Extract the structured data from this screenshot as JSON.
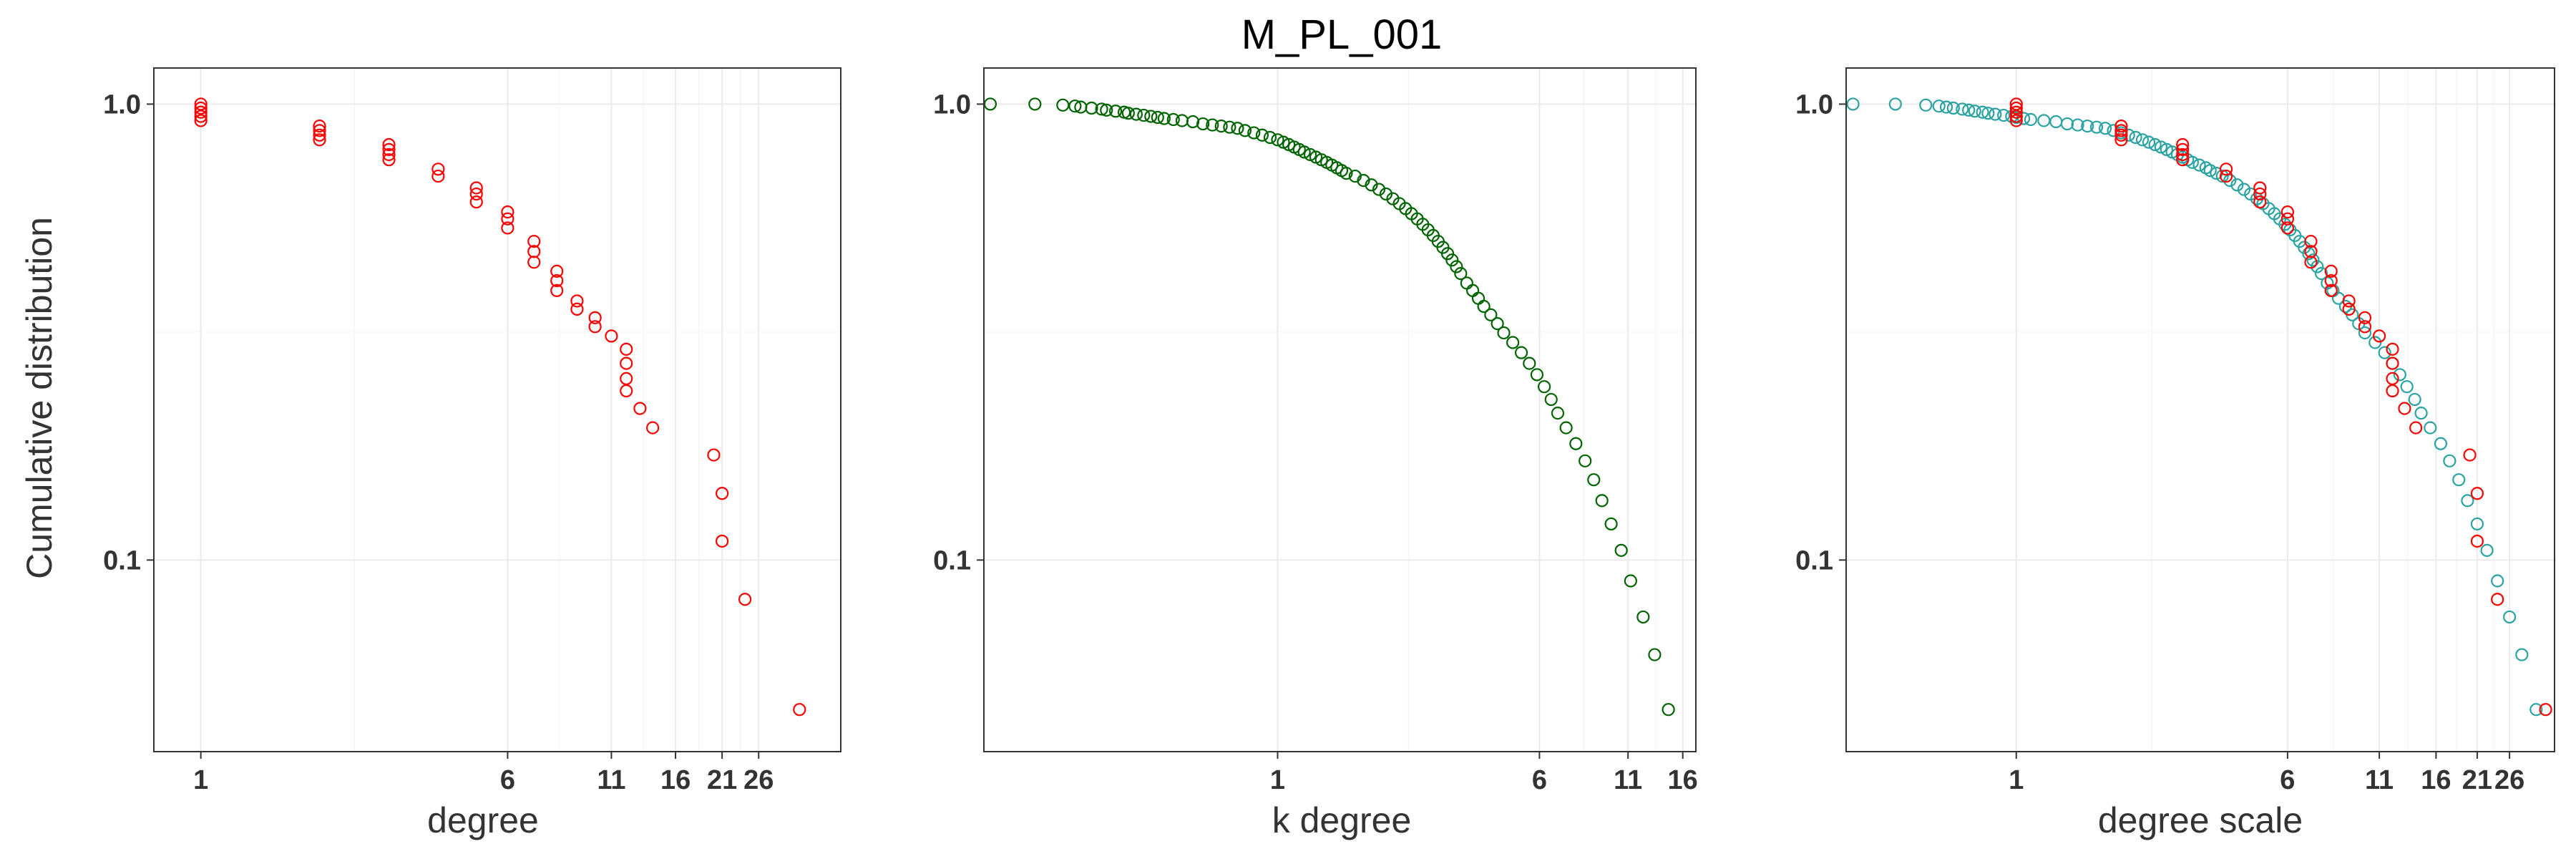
{
  "title": "M_PL_001",
  "colors": {
    "red": "#ff0000",
    "green": "#006400",
    "teal": "#2ca3a3"
  },
  "chart_data": [
    {
      "type": "scatter",
      "title": "",
      "xlabel": "degree",
      "ylabel": "Cumulative distribution",
      "x_scale": "log10",
      "y_scale": "log10",
      "xlim": [
        0.76,
        42
      ],
      "ylim": [
        0.038,
        1.2
      ],
      "x_ticks": [
        1,
        6,
        11,
        16,
        21,
        26
      ],
      "y_ticks": [
        0.1,
        1.0
      ],
      "y_tick_labels": [
        "0.1",
        "1.0"
      ],
      "grid": true,
      "marker": "open-circle",
      "series": [
        {
          "color": "#ff0000",
          "points": [
            [
              1,
              1.0
            ],
            [
              1,
              0.98
            ],
            [
              1,
              0.96
            ],
            [
              1,
              0.94
            ],
            [
              1,
              0.92
            ],
            [
              2,
              0.895
            ],
            [
              2,
              0.875
            ],
            [
              2,
              0.855
            ],
            [
              2,
              0.835
            ],
            [
              3,
              0.815
            ],
            [
              3,
              0.795
            ],
            [
              3,
              0.775
            ],
            [
              3,
              0.755
            ],
            [
              4,
              0.72
            ],
            [
              4,
              0.695
            ],
            [
              5,
              0.655
            ],
            [
              5,
              0.635
            ],
            [
              5,
              0.61
            ],
            [
              6,
              0.58
            ],
            [
              6,
              0.56
            ],
            [
              6,
              0.535
            ],
            [
              7,
              0.5
            ],
            [
              7,
              0.475
            ],
            [
              7,
              0.45
            ],
            [
              8,
              0.43
            ],
            [
              8,
              0.41
            ],
            [
              8,
              0.39
            ],
            [
              9,
              0.37
            ],
            [
              9,
              0.355
            ],
            [
              10,
              0.34
            ],
            [
              10,
              0.325
            ],
            [
              11,
              0.31
            ],
            [
              12,
              0.29
            ],
            [
              12,
              0.27
            ],
            [
              12,
              0.25
            ],
            [
              12,
              0.235
            ],
            [
              13,
              0.215
            ],
            [
              14,
              0.195
            ],
            [
              20,
              0.17
            ],
            [
              21,
              0.14
            ],
            [
              21,
              0.11
            ],
            [
              24,
              0.082
            ],
            [
              33,
              0.047
            ]
          ]
        }
      ]
    },
    {
      "type": "scatter",
      "title": "",
      "xlabel": "k degree",
      "ylabel": "",
      "x_scale": "log10",
      "y_scale": "log10",
      "xlim": [
        0.134,
        17.5
      ],
      "ylim": [
        0.038,
        1.2
      ],
      "x_ticks": [
        1,
        6,
        11,
        16
      ],
      "y_ticks": [
        0.1,
        1.0
      ],
      "y_tick_labels": [
        "0.1",
        "1.0"
      ],
      "grid": true,
      "marker": "open-circle",
      "series": [
        {
          "color": "#006400",
          "points": [
            [
              0.14,
              1.0
            ],
            [
              0.19,
              1.0
            ],
            [
              0.23,
              0.995
            ],
            [
              0.25,
              0.99
            ],
            [
              0.26,
              0.985
            ],
            [
              0.28,
              0.98
            ],
            [
              0.3,
              0.975
            ],
            [
              0.31,
              0.97
            ],
            [
              0.33,
              0.965
            ],
            [
              0.35,
              0.96
            ],
            [
              0.36,
              0.955
            ],
            [
              0.38,
              0.95
            ],
            [
              0.4,
              0.945
            ],
            [
              0.42,
              0.94
            ],
            [
              0.44,
              0.935
            ],
            [
              0.46,
              0.93
            ],
            [
              0.49,
              0.925
            ],
            [
              0.52,
              0.92
            ],
            [
              0.56,
              0.915
            ],
            [
              0.6,
              0.905
            ],
            [
              0.64,
              0.9
            ],
            [
              0.68,
              0.895
            ],
            [
              0.72,
              0.89
            ],
            [
              0.76,
              0.885
            ],
            [
              0.8,
              0.875
            ],
            [
              0.85,
              0.865
            ],
            [
              0.9,
              0.855
            ],
            [
              0.95,
              0.845
            ],
            [
              1.0,
              0.835
            ],
            [
              1.04,
              0.825
            ],
            [
              1.08,
              0.815
            ],
            [
              1.12,
              0.805
            ],
            [
              1.16,
              0.795
            ],
            [
              1.2,
              0.785
            ],
            [
              1.25,
              0.775
            ],
            [
              1.3,
              0.765
            ],
            [
              1.35,
              0.755
            ],
            [
              1.4,
              0.745
            ],
            [
              1.45,
              0.735
            ],
            [
              1.5,
              0.725
            ],
            [
              1.55,
              0.715
            ],
            [
              1.6,
              0.705
            ],
            [
              1.7,
              0.695
            ],
            [
              1.8,
              0.68
            ],
            [
              1.9,
              0.665
            ],
            [
              2.0,
              0.65
            ],
            [
              2.1,
              0.635
            ],
            [
              2.2,
              0.62
            ],
            [
              2.3,
              0.605
            ],
            [
              2.4,
              0.59
            ],
            [
              2.5,
              0.575
            ],
            [
              2.6,
              0.56
            ],
            [
              2.7,
              0.545
            ],
            [
              2.8,
              0.53
            ],
            [
              2.9,
              0.515
            ],
            [
              3.0,
              0.5
            ],
            [
              3.1,
              0.485
            ],
            [
              3.2,
              0.47
            ],
            [
              3.3,
              0.455
            ],
            [
              3.4,
              0.44
            ],
            [
              3.5,
              0.425
            ],
            [
              3.65,
              0.405
            ],
            [
              3.8,
              0.39
            ],
            [
              3.95,
              0.375
            ],
            [
              4.1,
              0.36
            ],
            [
              4.3,
              0.345
            ],
            [
              4.5,
              0.33
            ],
            [
              4.7,
              0.315
            ],
            [
              5.0,
              0.3
            ],
            [
              5.3,
              0.285
            ],
            [
              5.6,
              0.27
            ],
            [
              5.9,
              0.255
            ],
            [
              6.2,
              0.24
            ],
            [
              6.5,
              0.225
            ],
            [
              6.8,
              0.21
            ],
            [
              7.2,
              0.195
            ],
            [
              7.7,
              0.18
            ],
            [
              8.2,
              0.165
            ],
            [
              8.7,
              0.15
            ],
            [
              9.2,
              0.135
            ],
            [
              9.8,
              0.12
            ],
            [
              10.5,
              0.105
            ],
            [
              11.2,
              0.09
            ],
            [
              12.2,
              0.075
            ],
            [
              13.2,
              0.062
            ],
            [
              14.5,
              0.047
            ]
          ]
        }
      ]
    },
    {
      "type": "scatter",
      "title": "",
      "xlabel": "degree scale",
      "ylabel": "",
      "x_scale": "log10",
      "y_scale": "log10",
      "xlim": [
        0.325,
        35
      ],
      "ylim": [
        0.038,
        1.2
      ],
      "x_ticks": [
        1,
        6,
        11,
        16,
        21,
        26
      ],
      "y_ticks": [
        0.1,
        1.0
      ],
      "y_tick_labels": [
        "0.1",
        "1.0"
      ],
      "grid": true,
      "marker": "open-circle",
      "series": [
        {
          "color": "#2ca3a3",
          "points": [
            [
              0.34,
              1.0
            ],
            [
              0.45,
              1.0
            ],
            [
              0.55,
              0.995
            ],
            [
              0.6,
              0.99
            ],
            [
              0.63,
              0.985
            ],
            [
              0.66,
              0.98
            ],
            [
              0.7,
              0.975
            ],
            [
              0.73,
              0.97
            ],
            [
              0.76,
              0.965
            ],
            [
              0.8,
              0.96
            ],
            [
              0.83,
              0.955
            ],
            [
              0.87,
              0.95
            ],
            [
              0.92,
              0.945
            ],
            [
              0.97,
              0.94
            ],
            [
              1.0,
              0.935
            ],
            [
              1.05,
              0.93
            ],
            [
              1.1,
              0.925
            ],
            [
              1.2,
              0.92
            ],
            [
              1.3,
              0.915
            ],
            [
              1.4,
              0.905
            ],
            [
              1.5,
              0.9
            ],
            [
              1.6,
              0.895
            ],
            [
              1.7,
              0.89
            ],
            [
              1.8,
              0.885
            ],
            [
              1.9,
              0.875
            ],
            [
              2.0,
              0.865
            ],
            [
              2.1,
              0.855
            ],
            [
              2.2,
              0.845
            ],
            [
              2.3,
              0.835
            ],
            [
              2.4,
              0.825
            ],
            [
              2.5,
              0.815
            ],
            [
              2.6,
              0.805
            ],
            [
              2.7,
              0.795
            ],
            [
              2.8,
              0.785
            ],
            [
              2.9,
              0.775
            ],
            [
              3.0,
              0.765
            ],
            [
              3.1,
              0.755
            ],
            [
              3.2,
              0.745
            ],
            [
              3.35,
              0.735
            ],
            [
              3.5,
              0.725
            ],
            [
              3.6,
              0.715
            ],
            [
              3.75,
              0.705
            ],
            [
              3.9,
              0.695
            ],
            [
              4.1,
              0.68
            ],
            [
              4.3,
              0.665
            ],
            [
              4.5,
              0.65
            ],
            [
              4.7,
              0.635
            ],
            [
              4.9,
              0.62
            ],
            [
              5.1,
              0.605
            ],
            [
              5.3,
              0.59
            ],
            [
              5.5,
              0.575
            ],
            [
              5.7,
              0.56
            ],
            [
              5.9,
              0.545
            ],
            [
              6.1,
              0.53
            ],
            [
              6.3,
              0.515
            ],
            [
              6.5,
              0.5
            ],
            [
              6.7,
              0.485
            ],
            [
              6.9,
              0.47
            ],
            [
              7.1,
              0.455
            ],
            [
              7.3,
              0.44
            ],
            [
              7.5,
              0.425
            ],
            [
              7.8,
              0.405
            ],
            [
              8.1,
              0.39
            ],
            [
              8.4,
              0.375
            ],
            [
              8.8,
              0.36
            ],
            [
              9.2,
              0.345
            ],
            [
              9.6,
              0.33
            ],
            [
              10.0,
              0.315
            ],
            [
              10.7,
              0.3
            ],
            [
              11.4,
              0.285
            ],
            [
              12.0,
              0.27
            ],
            [
              12.6,
              0.255
            ],
            [
              13.2,
              0.24
            ],
            [
              13.9,
              0.225
            ],
            [
              14.5,
              0.21
            ],
            [
              15.4,
              0.195
            ],
            [
              16.5,
              0.18
            ],
            [
              17.5,
              0.165
            ],
            [
              18.6,
              0.15
            ],
            [
              19.7,
              0.135
            ],
            [
              21.0,
              0.12
            ],
            [
              22.4,
              0.105
            ],
            [
              24.0,
              0.09
            ],
            [
              26.0,
              0.075
            ],
            [
              28.2,
              0.062
            ],
            [
              31.0,
              0.047
            ]
          ]
        },
        {
          "color": "#ff0000",
          "points": [
            [
              1,
              1.0
            ],
            [
              1,
              0.98
            ],
            [
              1,
              0.96
            ],
            [
              1,
              0.94
            ],
            [
              1,
              0.92
            ],
            [
              2,
              0.895
            ],
            [
              2,
              0.875
            ],
            [
              2,
              0.855
            ],
            [
              2,
              0.835
            ],
            [
              3,
              0.815
            ],
            [
              3,
              0.795
            ],
            [
              3,
              0.775
            ],
            [
              3,
              0.755
            ],
            [
              4,
              0.72
            ],
            [
              4,
              0.695
            ],
            [
              5,
              0.655
            ],
            [
              5,
              0.635
            ],
            [
              5,
              0.61
            ],
            [
              6,
              0.58
            ],
            [
              6,
              0.56
            ],
            [
              6,
              0.535
            ],
            [
              7,
              0.5
            ],
            [
              7,
              0.475
            ],
            [
              7,
              0.45
            ],
            [
              8,
              0.43
            ],
            [
              8,
              0.41
            ],
            [
              8,
              0.39
            ],
            [
              9,
              0.37
            ],
            [
              9,
              0.355
            ],
            [
              10,
              0.34
            ],
            [
              10,
              0.325
            ],
            [
              11,
              0.31
            ],
            [
              12,
              0.29
            ],
            [
              12,
              0.27
            ],
            [
              12,
              0.25
            ],
            [
              12,
              0.235
            ],
            [
              13,
              0.215
            ],
            [
              14,
              0.195
            ],
            [
              20,
              0.17
            ],
            [
              21,
              0.14
            ],
            [
              21,
              0.11
            ],
            [
              24,
              0.082
            ],
            [
              33,
              0.047
            ]
          ]
        }
      ]
    }
  ]
}
